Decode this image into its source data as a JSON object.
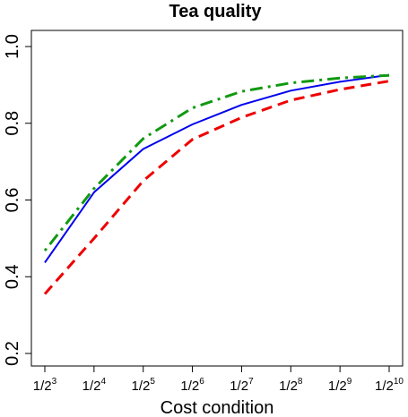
{
  "chart_data": {
    "type": "line",
    "title": "Tea quality",
    "xlabel": "Cost condition",
    "ylabel": "",
    "x": [
      3,
      4,
      5,
      6,
      7,
      8,
      9,
      10
    ],
    "x_tick_labels": [
      {
        "base": "1/2",
        "exp": "3"
      },
      {
        "base": "1/2",
        "exp": "4"
      },
      {
        "base": "1/2",
        "exp": "5"
      },
      {
        "base": "1/2",
        "exp": "6"
      },
      {
        "base": "1/2",
        "exp": "7"
      },
      {
        "base": "1/2",
        "exp": "8"
      },
      {
        "base": "1/2",
        "exp": "9"
      },
      {
        "base": "1/2",
        "exp": "10"
      }
    ],
    "ylim": [
      0.2,
      1.0
    ],
    "y_ticks": [
      0.2,
      0.4,
      0.6,
      0.8,
      1.0
    ],
    "y_tick_labels": [
      "0.2",
      "0.4",
      "0.6",
      "0.8",
      "1.0"
    ],
    "grid": false,
    "series": [
      {
        "color": "#0000ee",
        "dash": "solid",
        "values": [
          0.437,
          0.62,
          0.733,
          0.797,
          0.848,
          0.885,
          0.908,
          0.926
        ]
      },
      {
        "color": "#ee0000",
        "dash": "dashed",
        "values": [
          0.355,
          0.5,
          0.65,
          0.758,
          0.815,
          0.86,
          0.888,
          0.91
        ]
      },
      {
        "color": "#119911",
        "dash": "dotdash",
        "values": [
          0.468,
          0.63,
          0.76,
          0.84,
          0.883,
          0.905,
          0.918,
          0.925
        ]
      }
    ]
  }
}
